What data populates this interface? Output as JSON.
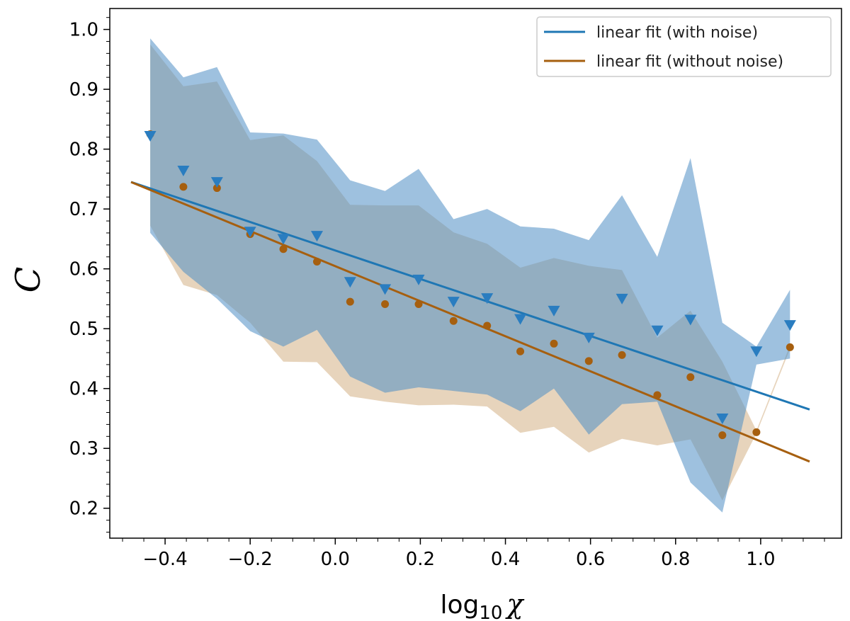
{
  "chart_data": {
    "type": "scatter",
    "xlabel": "log",
    "xlabel_sub": "10",
    "xlabel_var": "χ",
    "ylabel": "C",
    "xlim": [
      -0.53,
      1.19
    ],
    "ylim": [
      0.15,
      1.035
    ],
    "xticks": [
      -0.4,
      -0.2,
      0.0,
      0.2,
      0.4,
      0.6,
      0.8,
      1.0
    ],
    "xtick_labels": [
      "−0.4",
      "−0.2",
      "0.0",
      "0.2",
      "0.4",
      "0.6",
      "0.8",
      "1.0"
    ],
    "yticks": [
      0.2,
      0.3,
      0.4,
      0.5,
      0.6,
      0.7,
      0.8,
      0.9,
      1.0
    ],
    "ytick_labels": [
      "0.2",
      "0.3",
      "0.4",
      "0.5",
      "0.6",
      "0.7",
      "0.8",
      "0.9",
      "1.0"
    ],
    "legend_position": "top-right",
    "x": [
      -0.435,
      -0.357,
      -0.278,
      -0.2,
      -0.122,
      -0.043,
      0.035,
      0.117,
      0.196,
      0.278,
      0.357,
      0.435,
      0.514,
      0.596,
      0.674,
      0.757,
      0.835,
      0.91,
      0.99,
      1.069
    ],
    "series": [
      {
        "name": "linear fit (with noise)",
        "color": "#1f77b4",
        "marker": "triangle-down",
        "values": [
          0.822,
          0.764,
          0.745,
          0.662,
          0.65,
          0.655,
          0.578,
          0.566,
          0.582,
          0.545,
          0.551,
          0.516,
          0.53,
          0.485,
          0.55,
          0.497,
          0.515,
          0.35,
          0.462,
          0.506
        ],
        "band_upper": [
          0.985,
          0.92,
          0.937,
          0.828,
          0.826,
          0.816,
          0.748,
          0.73,
          0.767,
          0.683,
          0.7,
          0.671,
          0.667,
          0.648,
          0.723,
          0.62,
          0.785,
          0.51,
          0.47,
          0.565
        ],
        "band_lower": [
          0.66,
          0.595,
          0.55,
          0.496,
          0.47,
          0.498,
          0.42,
          0.393,
          0.402,
          0.396,
          0.39,
          0.362,
          0.4,
          0.323,
          0.374,
          0.378,
          0.243,
          0.193,
          0.44,
          0.45
        ],
        "fit": {
          "x": [
            -0.48,
            1.115
          ],
          "y": [
            0.745,
            0.365
          ]
        }
      },
      {
        "name": "linear fit (without noise)",
        "color": "#a65f0f",
        "marker": "circle",
        "values": [
          0.825,
          0.737,
          0.735,
          0.658,
          0.633,
          0.612,
          0.545,
          0.541,
          0.541,
          0.513,
          0.505,
          0.462,
          0.475,
          0.446,
          0.456,
          0.389,
          0.419,
          0.322,
          0.327,
          0.469
        ],
        "band_upper": [
          0.975,
          0.905,
          0.913,
          0.815,
          0.823,
          0.78,
          0.707,
          0.706,
          0.706,
          0.661,
          0.642,
          0.602,
          0.618,
          0.605,
          0.598,
          0.485,
          0.53,
          0.445,
          0.33,
          0.472
        ],
        "band_lower": [
          0.672,
          0.573,
          0.556,
          0.51,
          0.445,
          0.444,
          0.387,
          0.378,
          0.372,
          0.373,
          0.37,
          0.326,
          0.336,
          0.293,
          0.316,
          0.305,
          0.315,
          0.213,
          0.325,
          0.466
        ],
        "fit": {
          "x": [
            -0.48,
            1.115
          ],
          "y": [
            0.745,
            0.278
          ]
        }
      }
    ]
  }
}
